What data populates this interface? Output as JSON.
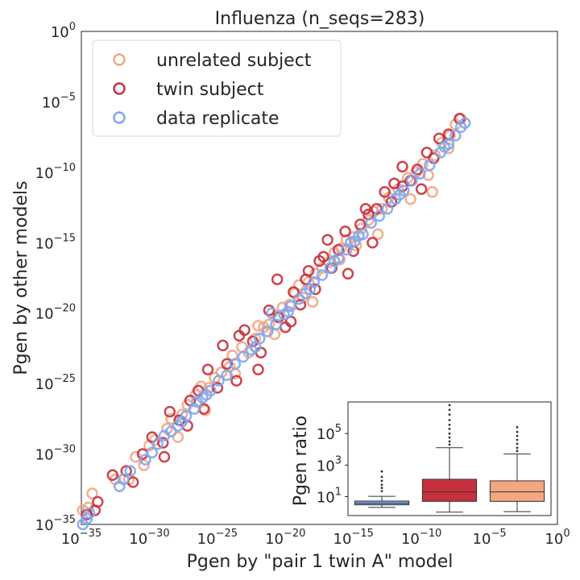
{
  "chart_data": [
    {
      "type": "scatter",
      "title": "Influenza (n_seqs=283)",
      "xlabel": "Pgen by \"pair 1 twin A\" model",
      "ylabel": "Pgen by other models",
      "xscale": "log",
      "yscale": "log",
      "xlim_exp": [
        -35,
        0
      ],
      "ylim_exp": [
        -35,
        0
      ],
      "x_ticks": [
        {
          "base": "10",
          "exp": "−35"
        },
        {
          "base": "10",
          "exp": "−30"
        },
        {
          "base": "10",
          "exp": "−25"
        },
        {
          "base": "10",
          "exp": "−20"
        },
        {
          "base": "10",
          "exp": "−15"
        },
        {
          "base": "10",
          "exp": "−10"
        },
        {
          "base": "10",
          "exp": "−5"
        },
        {
          "base": "10",
          "exp": "0"
        }
      ],
      "y_ticks": [
        {
          "base": "10",
          "exp": "−35"
        },
        {
          "base": "10",
          "exp": "−30"
        },
        {
          "base": "10",
          "exp": "−25"
        },
        {
          "base": "10",
          "exp": "−20"
        },
        {
          "base": "10",
          "exp": "−15"
        },
        {
          "base": "10",
          "exp": "−10"
        },
        {
          "base": "10",
          "exp": "−5"
        },
        {
          "base": "10",
          "exp": "0"
        }
      ],
      "legend_position": "top-left",
      "grid": false,
      "marker": "hollow circle",
      "series": [
        {
          "name": "unrelated subject",
          "color": "#f4a582",
          "points_log10": [
            [
              -34.9,
              -34.0
            ],
            [
              -34.5,
              -33.8
            ],
            [
              -32.5,
              -31.8
            ],
            [
              -31.0,
              -30.2
            ],
            [
              -30.4,
              -30.8
            ],
            [
              -29.6,
              -29.0
            ],
            [
              -28.7,
              -28.2
            ],
            [
              -28.4,
              -27.5
            ],
            [
              -27.6,
              -27.2
            ],
            [
              -27.2,
              -26.5
            ],
            [
              -26.6,
              -25.8
            ],
            [
              -26.2,
              -25.2
            ],
            [
              -25.6,
              -25.3
            ],
            [
              -25.2,
              -24.6
            ],
            [
              -24.7,
              -24.2
            ],
            [
              -24.1,
              -23.8
            ],
            [
              -23.7,
              -24.3
            ],
            [
              -23.2,
              -22.4
            ],
            [
              -22.7,
              -22.8
            ],
            [
              -22.2,
              -21.8
            ],
            [
              -21.6,
              -21.0
            ],
            [
              -21.2,
              -20.8
            ],
            [
              -20.6,
              -20.2
            ],
            [
              -20.2,
              -19.6
            ],
            [
              -19.7,
              -19.4
            ],
            [
              -19.3,
              -18.6
            ],
            [
              -18.7,
              -18.9
            ],
            [
              -18.3,
              -17.8
            ],
            [
              -17.8,
              -17.2
            ],
            [
              -17.3,
              -16.8
            ],
            [
              -16.8,
              -16.4
            ],
            [
              -16.4,
              -15.7
            ],
            [
              -15.9,
              -15.4
            ],
            [
              -15.5,
              -14.8
            ],
            [
              -15.0,
              -14.6
            ],
            [
              -14.4,
              -14.0
            ],
            [
              -13.9,
              -13.4
            ],
            [
              -13.5,
              -12.8
            ],
            [
              -12.9,
              -12.6
            ],
            [
              -12.4,
              -11.8
            ],
            [
              -11.7,
              -11.2
            ],
            [
              -11.0,
              -10.4
            ],
            [
              -10.4,
              -10.0
            ],
            [
              -9.9,
              -9.4
            ],
            [
              -9.0,
              -8.8
            ],
            [
              -8.5,
              -7.9
            ],
            [
              -7.9,
              -7.4
            ],
            [
              -7.5,
              -6.6
            ],
            [
              -7.1,
              -6.2
            ],
            [
              -9.5,
              -10.2
            ],
            [
              -10.8,
              -11.9
            ],
            [
              -9.2,
              -11.4
            ],
            [
              -16.0,
              -16.2
            ],
            [
              -20.8,
              -21.5
            ],
            [
              -25.9,
              -26.9
            ],
            [
              -30.0,
              -29.4
            ],
            [
              -31.5,
              -31.8
            ],
            [
              -34.2,
              -32.8
            ],
            [
              -27.9,
              -28.8
            ],
            [
              -23.9,
              -23.0
            ],
            [
              -18.0,
              -19.2
            ],
            [
              -13.2,
              -14.4
            ],
            [
              -8.0,
              -8.3
            ],
            [
              -22.0,
              -20.9
            ],
            [
              -19.0,
              -18.0
            ],
            [
              -14.8,
              -15.2
            ]
          ]
        },
        {
          "name": "twin subject",
          "color": "#c7313d",
          "points_log10": [
            [
              -34.6,
              -34.3
            ],
            [
              -33.8,
              -33.4
            ],
            [
              -34.0,
              -34.0
            ],
            [
              -32.7,
              -31.5
            ],
            [
              -31.7,
              -31.2
            ],
            [
              -30.5,
              -30.0
            ],
            [
              -29.8,
              -28.8
            ],
            [
              -29.0,
              -29.2
            ],
            [
              -28.5,
              -27.0
            ],
            [
              -27.8,
              -27.6
            ],
            [
              -27.2,
              -28.0
            ],
            [
              -26.4,
              -25.5
            ],
            [
              -25.7,
              -24.0
            ],
            [
              -25.0,
              -25.3
            ],
            [
              -24.3,
              -23.6
            ],
            [
              -23.6,
              -24.8
            ],
            [
              -23.0,
              -21.2
            ],
            [
              -22.4,
              -22.0
            ],
            [
              -21.8,
              -22.8
            ],
            [
              -21.2,
              -19.8
            ],
            [
              -20.5,
              -20.3
            ],
            [
              -20.0,
              -21.0
            ],
            [
              -19.4,
              -18.5
            ],
            [
              -18.9,
              -19.4
            ],
            [
              -18.3,
              -17.0
            ],
            [
              -17.8,
              -18.3
            ],
            [
              -17.2,
              -16.0
            ],
            [
              -16.6,
              -16.8
            ],
            [
              -16.1,
              -15.5
            ],
            [
              -15.6,
              -14.2
            ],
            [
              -15.0,
              -15.6
            ],
            [
              -14.5,
              -13.7
            ],
            [
              -13.9,
              -13.0
            ],
            [
              -13.3,
              -12.6
            ],
            [
              -12.7,
              -11.4
            ],
            [
              -12.2,
              -12.1
            ],
            [
              -11.4,
              -11.0
            ],
            [
              -10.8,
              -10.6
            ],
            [
              -10.3,
              -9.8
            ],
            [
              -9.6,
              -8.6
            ],
            [
              -8.7,
              -7.6
            ],
            [
              -8.0,
              -7.3
            ],
            [
              -7.2,
              -6.2
            ],
            [
              -24.6,
              -22.3
            ],
            [
              -27.0,
              -26.2
            ],
            [
              -20.6,
              -17.6
            ],
            [
              -18.5,
              -17.6
            ],
            [
              -22.0,
              -24.0
            ],
            [
              -16.9,
              -14.8
            ],
            [
              -14.1,
              -12.6
            ],
            [
              -12.0,
              -10.8
            ],
            [
              -26.0,
              -26.8
            ],
            [
              -28.9,
              -30.2
            ],
            [
              -31.2,
              -32.0
            ],
            [
              -19.6,
              -20.6
            ],
            [
              -23.4,
              -21.6
            ],
            [
              -15.4,
              -17.2
            ],
            [
              -10.0,
              -11.2
            ],
            [
              -9.1,
              -9.0
            ],
            [
              -11.4,
              -9.6
            ],
            [
              -13.6,
              -15.0
            ],
            [
              -17.5,
              -16.3
            ]
          ]
        },
        {
          "name": "data replicate",
          "color": "#7da7f0",
          "points_log10": [
            [
              -34.9,
              -35.0
            ],
            [
              -34.4,
              -34.2
            ],
            [
              -34.6,
              -34.6
            ],
            [
              -32.2,
              -32.3
            ],
            [
              -31.9,
              -31.8
            ],
            [
              -31.4,
              -31.2
            ],
            [
              -30.3,
              -30.4
            ],
            [
              -29.8,
              -29.9
            ],
            [
              -29.4,
              -29.3
            ],
            [
              -28.9,
              -28.7
            ],
            [
              -28.4,
              -28.4
            ],
            [
              -27.9,
              -28.0
            ],
            [
              -27.3,
              -27.3
            ],
            [
              -26.7,
              -26.8
            ],
            [
              -26.1,
              -26.0
            ],
            [
              -25.5,
              -25.5
            ],
            [
              -24.9,
              -24.8
            ],
            [
              -24.3,
              -24.4
            ],
            [
              -23.7,
              -23.6
            ],
            [
              -23.1,
              -23.1
            ],
            [
              -22.5,
              -22.6
            ],
            [
              -21.9,
              -21.8
            ],
            [
              -21.3,
              -21.3
            ],
            [
              -20.7,
              -20.8
            ],
            [
              -20.1,
              -20.1
            ],
            [
              -19.6,
              -19.5
            ],
            [
              -19.0,
              -19.0
            ],
            [
              -18.5,
              -18.6
            ],
            [
              -17.9,
              -17.8
            ],
            [
              -17.3,
              -17.3
            ],
            [
              -16.7,
              -16.8
            ],
            [
              -16.1,
              -16.1
            ],
            [
              -15.5,
              -15.5
            ],
            [
              -14.9,
              -14.9
            ],
            [
              -14.3,
              -14.4
            ],
            [
              -13.7,
              -13.6
            ],
            [
              -13.1,
              -13.1
            ],
            [
              -12.5,
              -12.6
            ],
            [
              -11.9,
              -11.9
            ],
            [
              -11.3,
              -11.3
            ],
            [
              -10.7,
              -10.6
            ],
            [
              -10.1,
              -10.1
            ],
            [
              -9.4,
              -9.5
            ],
            [
              -8.6,
              -8.6
            ],
            [
              -8.0,
              -8.0
            ],
            [
              -7.5,
              -7.4
            ],
            [
              -7.1,
              -6.8
            ],
            [
              -6.8,
              -6.5
            ],
            [
              -26.5,
              -26.3
            ],
            [
              -22.2,
              -22.4
            ],
            [
              -18.2,
              -18.3
            ],
            [
              -14.6,
              -14.5
            ],
            [
              -11.6,
              -11.6
            ],
            [
              -21.0,
              -20.0
            ],
            [
              -16.4,
              -16.3
            ],
            [
              -8.3,
              -8.2
            ],
            [
              -27.6,
              -27.7
            ],
            [
              -25.8,
              -25.8
            ],
            [
              -19.8,
              -19.9
            ],
            [
              -15.2,
              -15.0
            ]
          ]
        }
      ]
    },
    {
      "type": "box",
      "ylabel": "Pgen ratio",
      "yscale": "log",
      "ylim_exp": [
        -0.2,
        7.0
      ],
      "y_ticks": [
        {
          "base": "10",
          "exp": "1",
          "value": 1
        },
        {
          "base": "10",
          "exp": "3",
          "value": 3
        },
        {
          "base": "10",
          "exp": "5",
          "value": 5
        }
      ],
      "boxes_log10": [
        {
          "name": "data replicate",
          "color": "#7da7f0",
          "q1": 0.48,
          "median": 0.58,
          "q3": 0.72,
          "whisker_low": 0.32,
          "whisker_high": 1.02,
          "outliers": [
            1.35,
            1.55,
            1.75,
            2.0,
            2.25,
            2.6
          ]
        },
        {
          "name": "twin subject",
          "color": "#c7313d",
          "q1": 0.7,
          "median": 1.3,
          "q3": 2.1,
          "whisker_low": 0.02,
          "whisker_high": 4.1,
          "outliers": [
            4.3,
            4.5,
            4.75,
            5.0,
            5.3,
            5.55,
            5.85,
            6.2,
            6.5,
            6.8
          ]
        },
        {
          "name": "unrelated subject",
          "color": "#f4a582",
          "q1": 0.7,
          "median": 1.3,
          "q3": 2.0,
          "whisker_low": 0.05,
          "whisker_high": 3.7,
          "outliers": [
            3.9,
            4.1,
            4.35,
            4.6,
            4.85,
            5.1,
            5.4
          ]
        }
      ]
    }
  ]
}
